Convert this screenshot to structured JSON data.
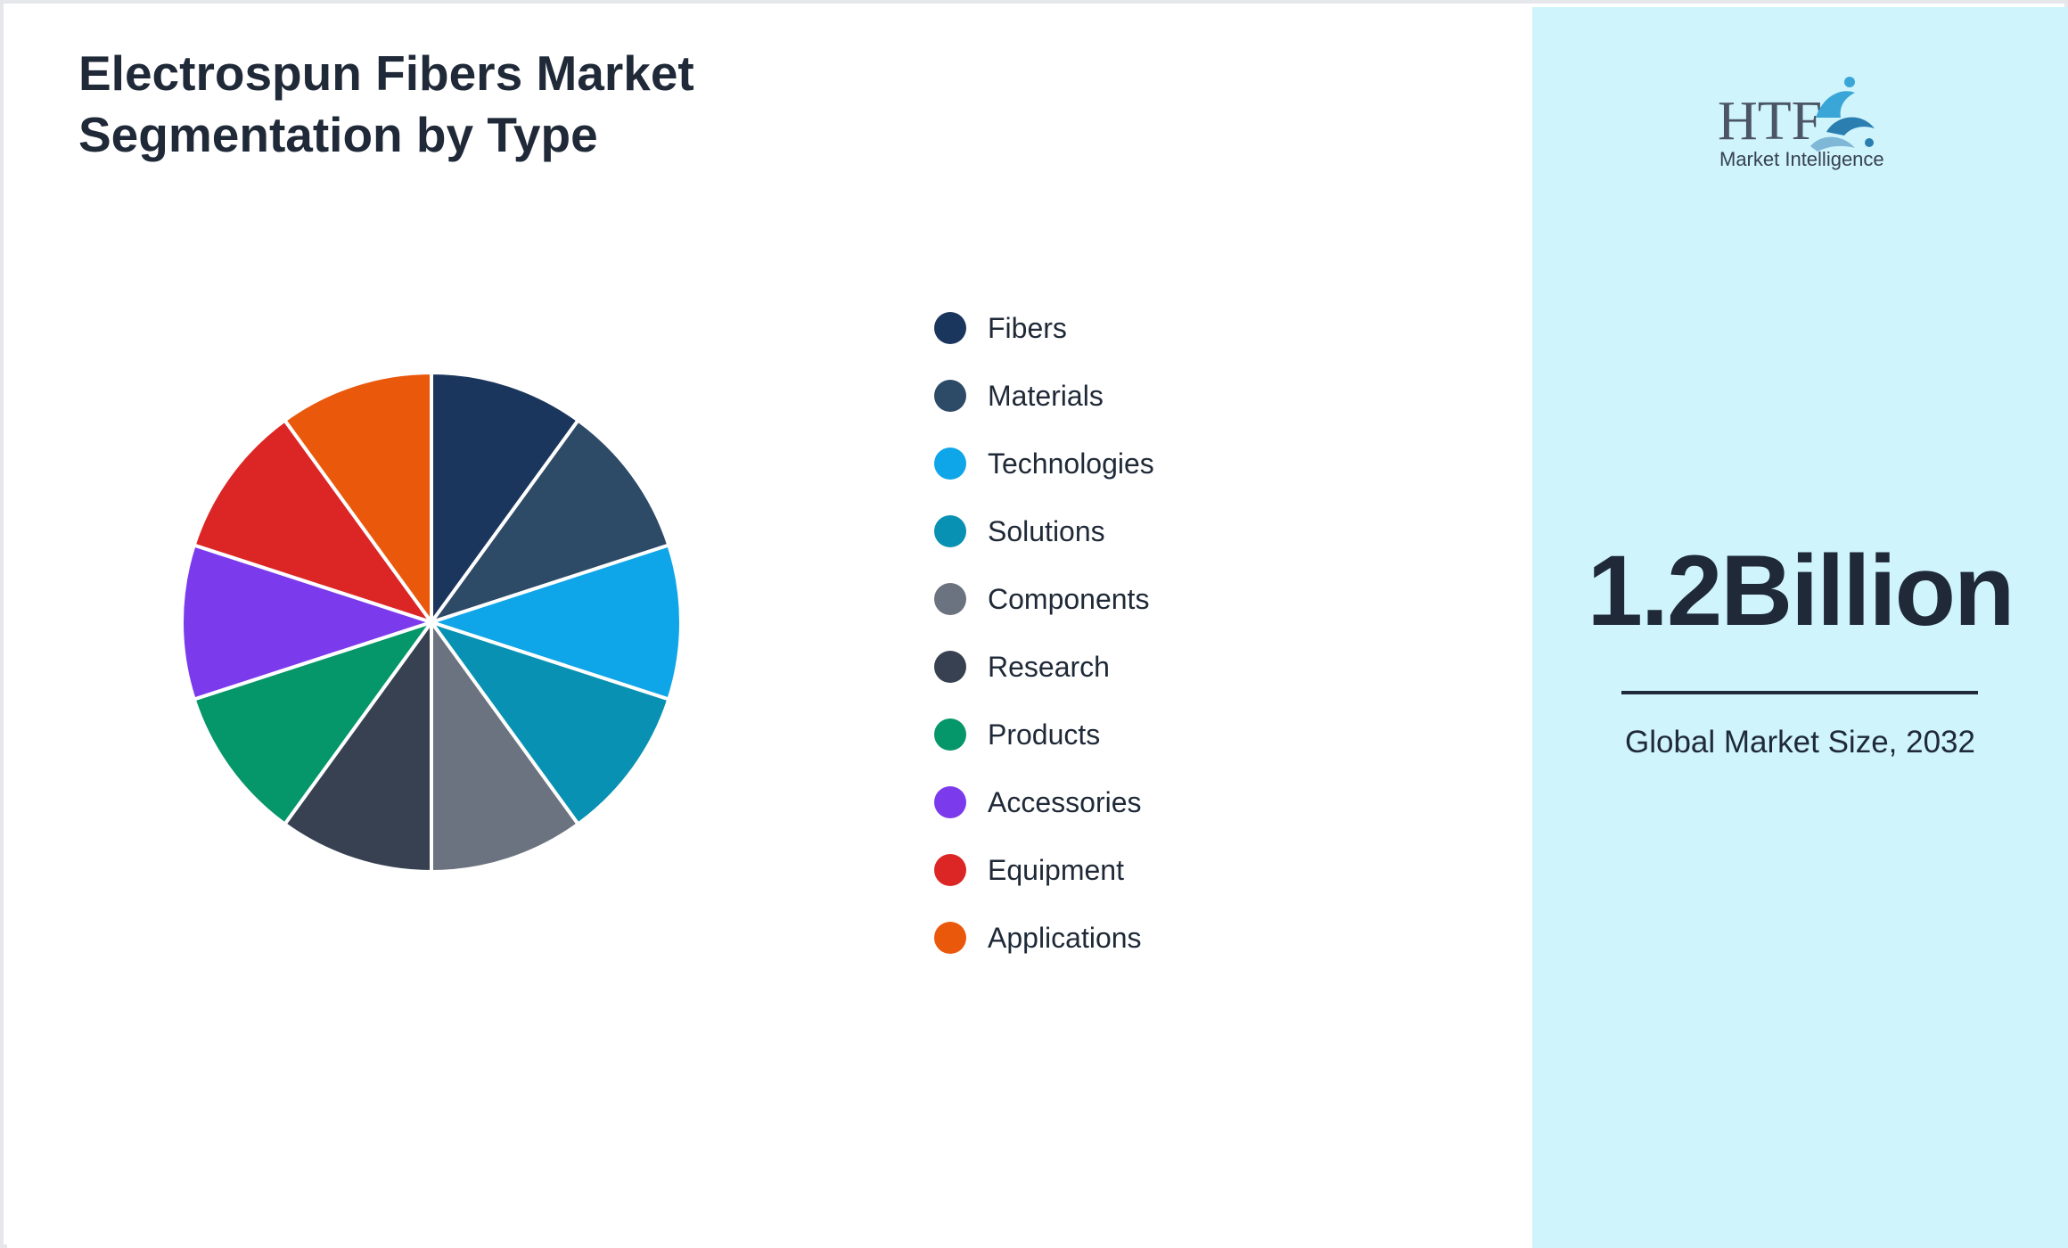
{
  "chart_data": {
    "type": "pie",
    "title": "Electrospun Fibers Market Segmentation by Type",
    "labels": [
      "Fibers",
      "Materials",
      "Technologies",
      "Solutions",
      "Components",
      "Research",
      "Products",
      "Accessories",
      "Equipment",
      "Applications"
    ],
    "values": [
      10,
      10,
      10,
      10,
      10,
      10,
      10,
      10,
      10,
      10
    ],
    "colors": [
      "#1b365d",
      "#2d4a67",
      "#0ea5e9",
      "#0891b2",
      "#6b7280",
      "#374151",
      "#059669",
      "#7c3aed",
      "#dc2626",
      "#ea580c"
    ],
    "legend_position": "right"
  },
  "summary": {
    "value": "1.2Billion",
    "caption": "Global Market Size, 2032",
    "accent_color": "#cff4fc"
  },
  "logo": {
    "text": "HTF",
    "subtitle": "Market Intelligence"
  }
}
